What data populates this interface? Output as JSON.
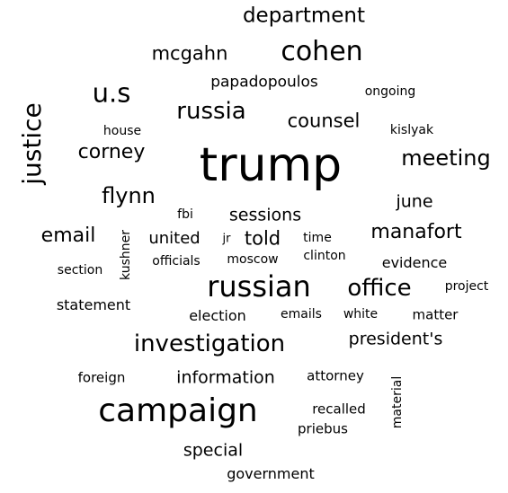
{
  "words": [
    {
      "text": "trump",
      "size": 52
    },
    {
      "text": "campaign",
      "size": 36
    },
    {
      "text": "russian",
      "size": 32
    },
    {
      "text": "cohen",
      "size": 30
    },
    {
      "text": "u.s",
      "size": 29
    },
    {
      "text": "justice",
      "size": 28
    },
    {
      "text": "investigation",
      "size": 26
    },
    {
      "text": "russia",
      "size": 26
    },
    {
      "text": "office",
      "size": 26
    },
    {
      "text": "meeting",
      "size": 24
    },
    {
      "text": "flynn",
      "size": 24
    },
    {
      "text": "department",
      "size": 23
    },
    {
      "text": "email",
      "size": 22
    },
    {
      "text": "corney",
      "size": 22
    },
    {
      "text": "manafort",
      "size": 22
    },
    {
      "text": "mcgahn",
      "size": 21
    },
    {
      "text": "counsel",
      "size": 21
    },
    {
      "text": "told",
      "size": 21
    },
    {
      "text": "president's",
      "size": 19
    },
    {
      "text": "sessions",
      "size": 19
    },
    {
      "text": "information",
      "size": 19
    },
    {
      "text": "june",
      "size": 19
    },
    {
      "text": "special",
      "size": 19
    },
    {
      "text": "united",
      "size": 18
    },
    {
      "text": "papadopoulos",
      "size": 17
    },
    {
      "text": "election",
      "size": 16
    },
    {
      "text": "evidence",
      "size": 16
    },
    {
      "text": "government",
      "size": 16
    },
    {
      "text": "statement",
      "size": 16
    },
    {
      "text": "matter",
      "size": 15
    },
    {
      "text": "recalled",
      "size": 15
    },
    {
      "text": "priebus",
      "size": 15
    },
    {
      "text": "attorney",
      "size": 15
    },
    {
      "text": "foreign",
      "size": 15
    },
    {
      "text": "ongoing",
      "size": 14
    },
    {
      "text": "kislyak",
      "size": 14
    },
    {
      "text": "house",
      "size": 14
    },
    {
      "text": "fbi",
      "size": 14
    },
    {
      "text": "time",
      "size": 14
    },
    {
      "text": "clinton",
      "size": 14
    },
    {
      "text": "project",
      "size": 14
    },
    {
      "text": "emails",
      "size": 14
    },
    {
      "text": "white",
      "size": 14
    },
    {
      "text": "officials",
      "size": 14
    },
    {
      "text": "moscow",
      "size": 14
    },
    {
      "text": "section",
      "size": 14
    },
    {
      "text": "kushner",
      "size": 14
    },
    {
      "text": "material",
      "size": 14
    },
    {
      "text": "jr",
      "size": 13
    }
  ]
}
